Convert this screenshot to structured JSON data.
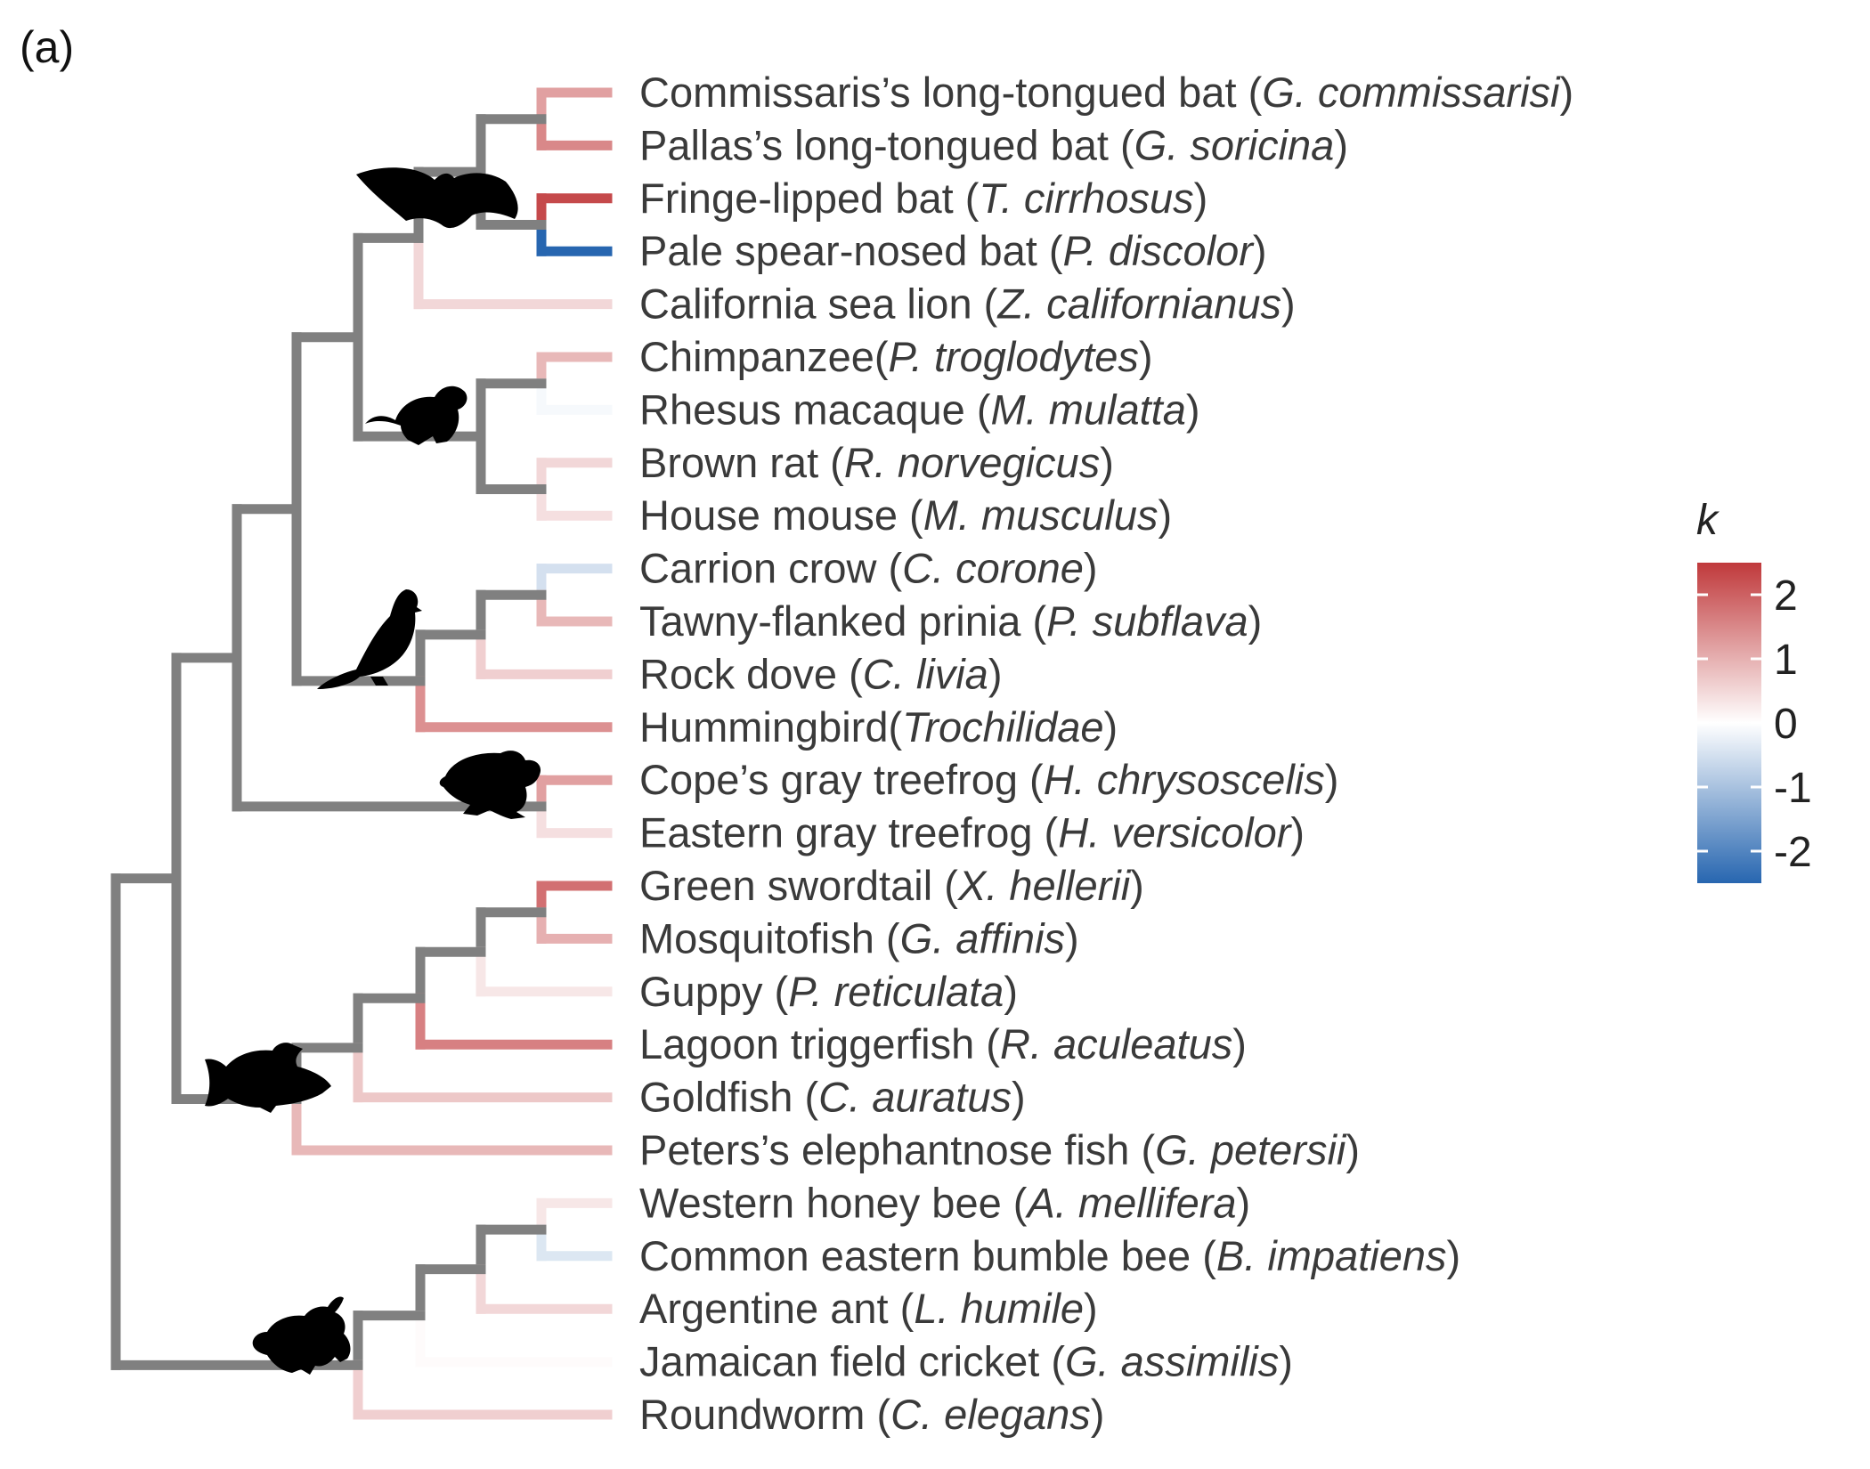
{
  "panel_label": "(a)",
  "legend": {
    "title": "k",
    "ticks": [
      "2",
      "1",
      "0",
      "-1",
      "-2"
    ],
    "colors": {
      "high": "#c0393b",
      "mid": "#ffffff",
      "low": "#2766b0"
    }
  },
  "tree_color": "#808080",
  "silhouettes": [
    "bat-icon",
    "rat-icon",
    "pigeon-icon",
    "frog-icon",
    "fish-icon",
    "bee-icon"
  ],
  "chart_data": {
    "type": "phylogenetic-tree",
    "legend_title": "k",
    "legend_range": [
      -2.5,
      2.5
    ],
    "tips": [
      {
        "common": "Commissaris’s long-tongued bat",
        "sep": " (",
        "species": "G. commissarisi",
        "close": ")",
        "k": 1.2
      },
      {
        "common": "Pallas’s long-tongued bat",
        "sep": " (",
        "species": "G. soricina",
        "close": ")",
        "k": 1.5
      },
      {
        "common": "Fringe-lipped bat",
        "sep": " (",
        "species": "T. cirrhosus",
        "close": ")",
        "k": 2.3
      },
      {
        "common": "Pale spear-nosed bat",
        "sep": " (",
        "species": "P. discolor",
        "close": ")",
        "k": -2.5
      },
      {
        "common": "California sea lion",
        "sep": " (",
        "species": "Z. californianus",
        "close": ")",
        "k": 0.5
      },
      {
        "common": "Chimpanzee",
        "sep": "(",
        "species": "P. troglodytes",
        "close": ")",
        "k": 0.9
      },
      {
        "common": "Rhesus macaque",
        "sep": " (",
        "species": "M. mulatta",
        "close": ")",
        "k": -0.1
      },
      {
        "common": "Brown rat",
        "sep": " (",
        "species": "R. norvegicus",
        "close": ")",
        "k": 0.5
      },
      {
        "common": "House mouse",
        "sep": " (",
        "species": "M. musculus",
        "close": ")",
        "k": 0.4
      },
      {
        "common": "Carrion crow",
        "sep": " (",
        "species": "C. corone",
        "close": ")",
        "k": -0.5
      },
      {
        "common": "Tawny-flanked prinia",
        "sep": " (",
        "species": "P. subflava",
        "close": ")",
        "k": 0.9
      },
      {
        "common": "Rock dove",
        "sep": " (",
        "species": "C. livia",
        "close": ")",
        "k": 0.6
      },
      {
        "common": "Hummingbird",
        "sep": "(",
        "species": "Trochilidae",
        "close": ")",
        "k": 1.4
      },
      {
        "common": "Cope’s gray treefrog",
        "sep": " (",
        "species": "H. chrysoscelis",
        "close": ")",
        "k": 1.2
      },
      {
        "common": "Eastern gray treefrog",
        "sep": " (",
        "species": "H. versicolor",
        "close": ")",
        "k": 0.4
      },
      {
        "common": "Green swordtail",
        "sep": " (",
        "species": "X. hellerii",
        "close": ")",
        "k": 1.8
      },
      {
        "common": "Mosquitofish",
        "sep": " (",
        "species": "G. affinis",
        "close": ")",
        "k": 1.0
      },
      {
        "common": "Guppy",
        "sep": " (",
        "species": "P. reticulata",
        "close": ")",
        "k": 0.3
      },
      {
        "common": "Lagoon triggerfish",
        "sep": " (",
        "species": "R. aculeatus",
        "close": ")",
        "k": 1.6
      },
      {
        "common": "Goldfish",
        "sep": " (",
        "species": "C. auratus",
        "close": ")",
        "k": 0.7
      },
      {
        "common": "Peters’s elephantnose fish",
        "sep": " (",
        "species": "G. petersii",
        "close": ")",
        "k": 0.9
      },
      {
        "common": "Western honey bee",
        "sep": " (",
        "species": "A. mellifera",
        "close": ")",
        "k": 0.3
      },
      {
        "common": "Common eastern bumble bee",
        "sep": " (",
        "species": "B. impatiens",
        "close": ")",
        "k": -0.4
      },
      {
        "common": "Argentine ant",
        "sep": " (",
        "species": "L. humile",
        "close": ")",
        "k": 0.5
      },
      {
        "common": "Jamaican field cricket",
        "sep": " (",
        "species": "G. assimilis",
        "close": ")",
        "k": 0.05
      },
      {
        "common": "Roundworm",
        "sep": " (",
        "species": "C. elegans",
        "close": ")",
        "k": 0.6
      }
    ],
    "internal_k": {
      "bat_sealion": 0.5,
      "rock_dove_branch": 0.6,
      "hummingbird_branch": 1.4,
      "guppy_branch": 0.3,
      "triggerfish_branch": 1.6,
      "goldfish_branch": 0.7,
      "elephantnose_branch": 0.9,
      "ant_branch": 0.5,
      "cricket_branch": 0.05,
      "roundworm_branch": 0.6
    }
  }
}
